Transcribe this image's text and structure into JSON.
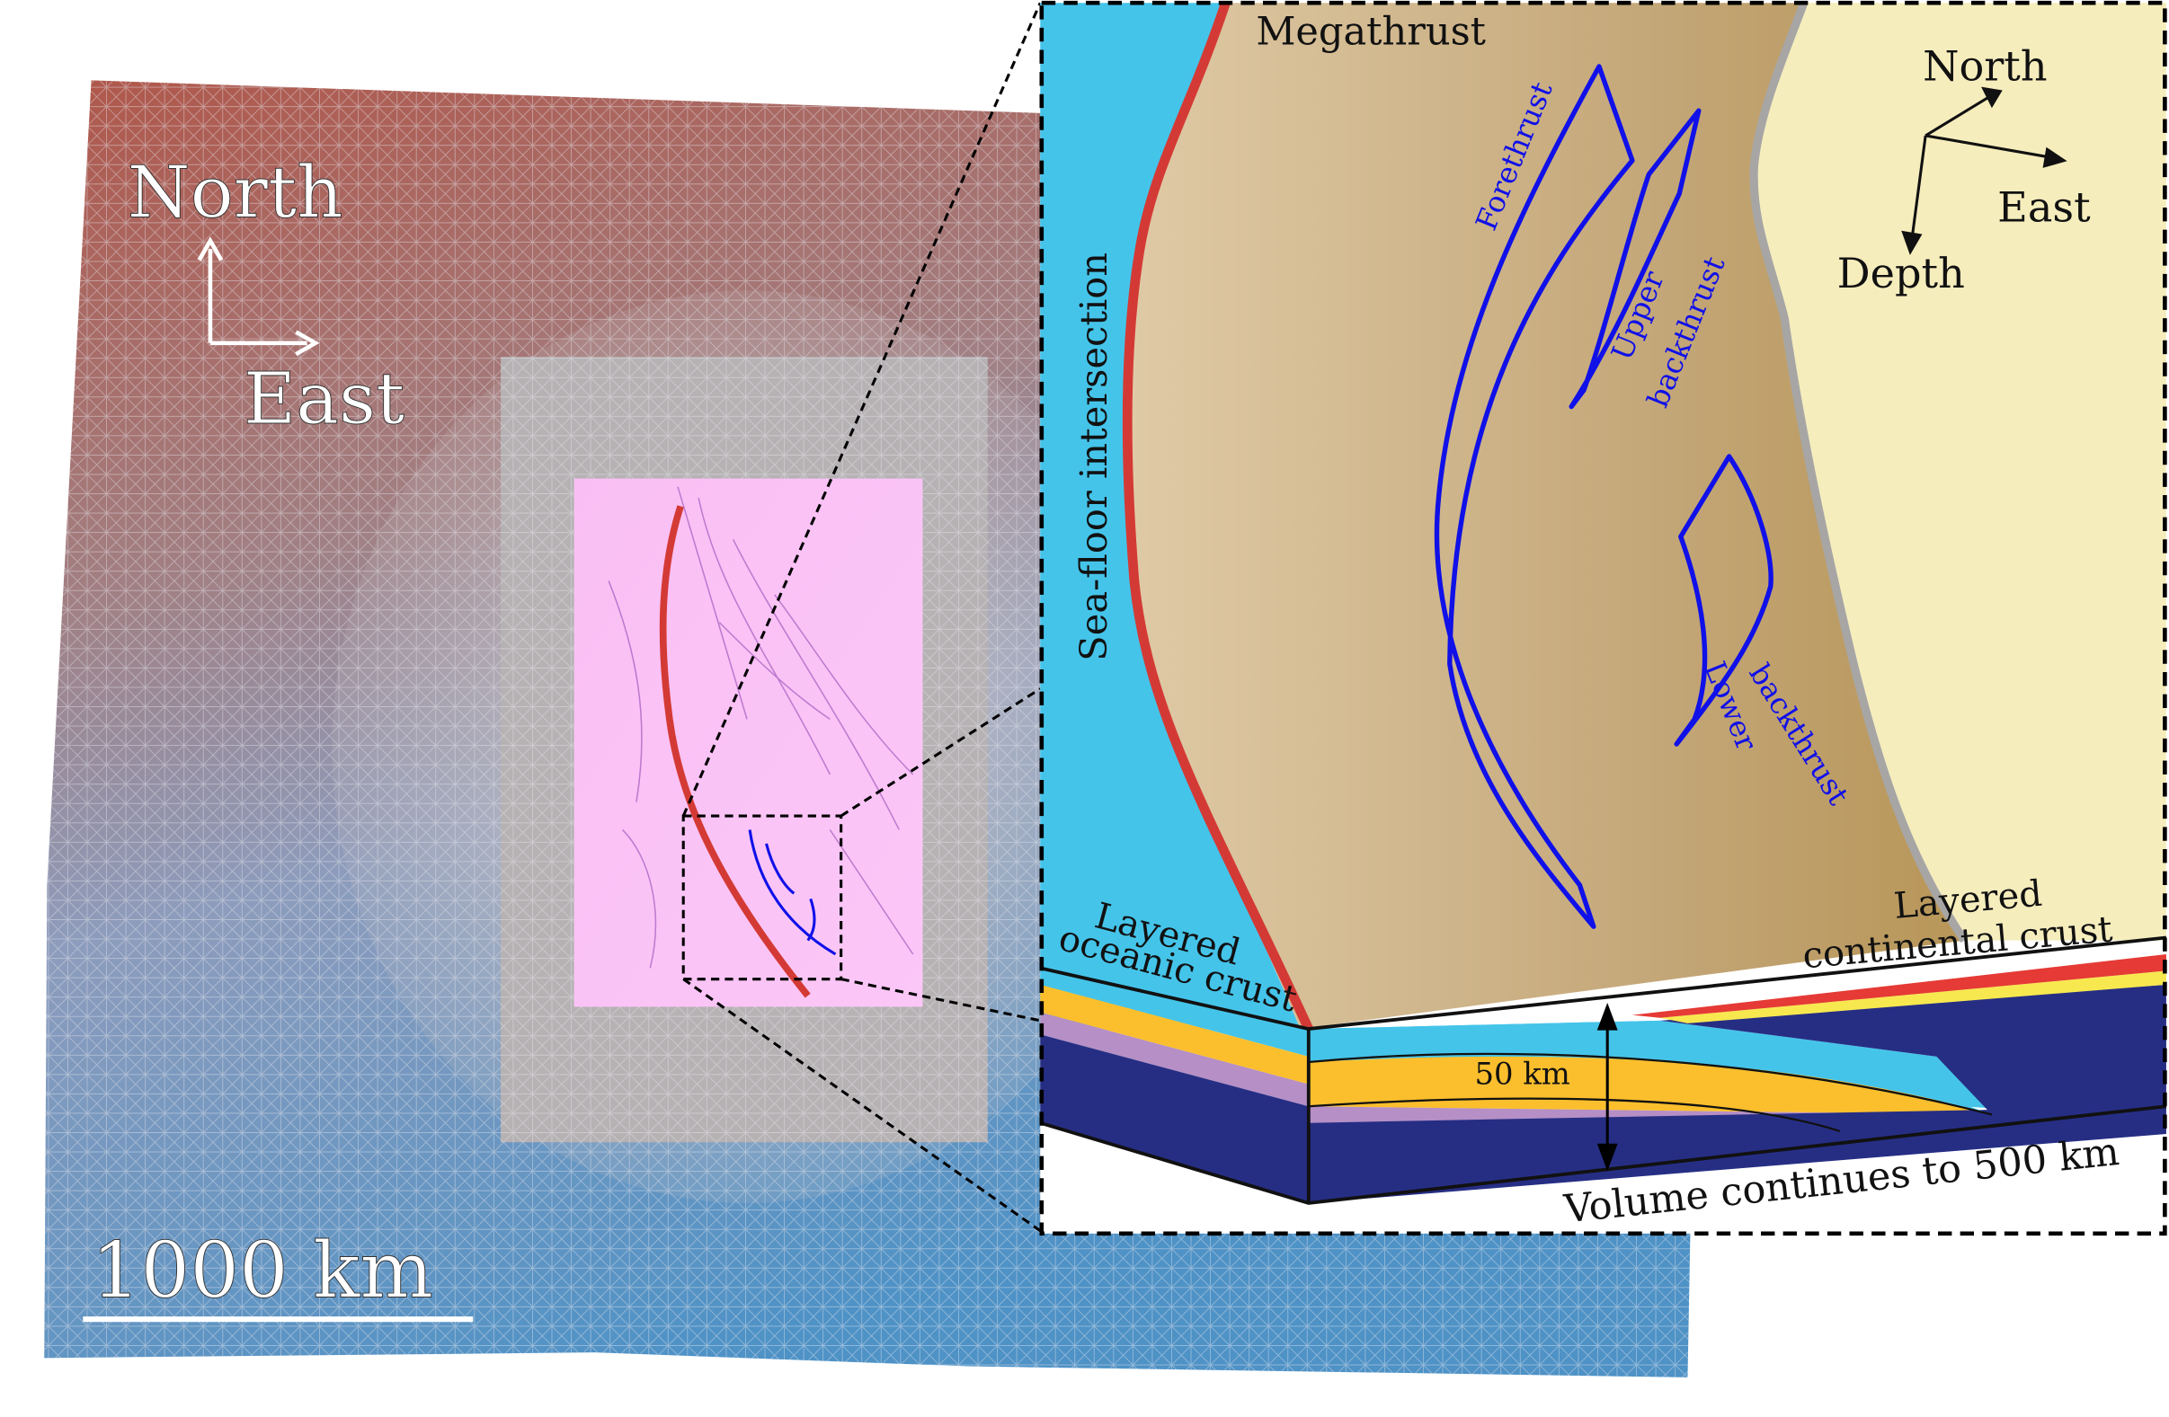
{
  "map": {
    "compass_north": "North",
    "compass_east": "East",
    "scale_label": "1000 km"
  },
  "inset": {
    "title_megathrust": "Megathrust",
    "seafloor": "Sea-floor intersection",
    "forethrust": "Forethrust",
    "upper_backthrust_1": "Upper",
    "upper_backthrust_2": "backthrust",
    "lower_backthrust_1": "Lower",
    "lower_backthrust_2": "backthrust",
    "compass_north": "North",
    "compass_east": "East",
    "compass_depth": "Depth",
    "oceanic_1": "Layered",
    "oceanic_2": "oceanic crust",
    "continental_1": "Layered",
    "continental_2": "continental crust",
    "depth_label": "50 km",
    "volume_note": "Volume continues to 500 km"
  },
  "colors": {
    "megathrust": "#d43a35",
    "faults": "#1010e8",
    "ocean": "#45c4ea",
    "wedge_tan": "#c4a77b",
    "continent": "#f6edbd",
    "layer_orange": "#fbbf2d",
    "layer_purple": "#b58fc5",
    "layer_navy": "#262e84",
    "layer_red": "#e53a35",
    "layer_yellow": "#f7e84f"
  }
}
